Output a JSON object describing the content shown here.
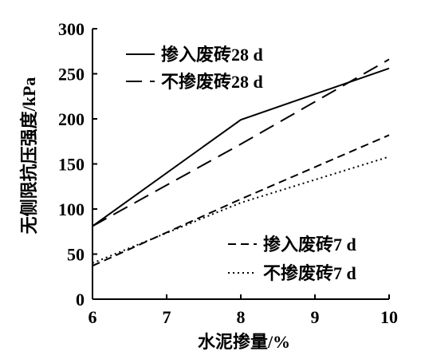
{
  "chart_data": {
    "type": "line",
    "xlabel": "水泥掺量/%",
    "ylabel": "无侧限抗压强度/kPa",
    "xlim": [
      6,
      10
    ],
    "ylim": [
      0,
      300
    ],
    "xticks": [
      6,
      7,
      8,
      9,
      10
    ],
    "yticks": [
      0,
      50,
      100,
      150,
      200,
      250,
      300
    ],
    "grid": false,
    "series": [
      {
        "name": "掺入废砖28 d",
        "style": "solid",
        "x": [
          6,
          8,
          10
        ],
        "y": [
          81,
          199,
          256
        ]
      },
      {
        "name": "不掺废砖28 d",
        "style": "long-dash",
        "x": [
          6,
          8,
          10
        ],
        "y": [
          81,
          172,
          266
        ]
      },
      {
        "name": "掺入废砖7 d",
        "style": "short-dash",
        "x": [
          6,
          8,
          10
        ],
        "y": [
          37,
          111,
          182
        ]
      },
      {
        "name": "不掺废砖7 d",
        "style": "dotted",
        "x": [
          6,
          8,
          10
        ],
        "y": [
          40,
          107,
          158
        ]
      }
    ],
    "legends": [
      {
        "placement": "top-left",
        "series": [
          0,
          1
        ]
      },
      {
        "placement": "bottom-right",
        "series": [
          2,
          3
        ]
      }
    ]
  }
}
